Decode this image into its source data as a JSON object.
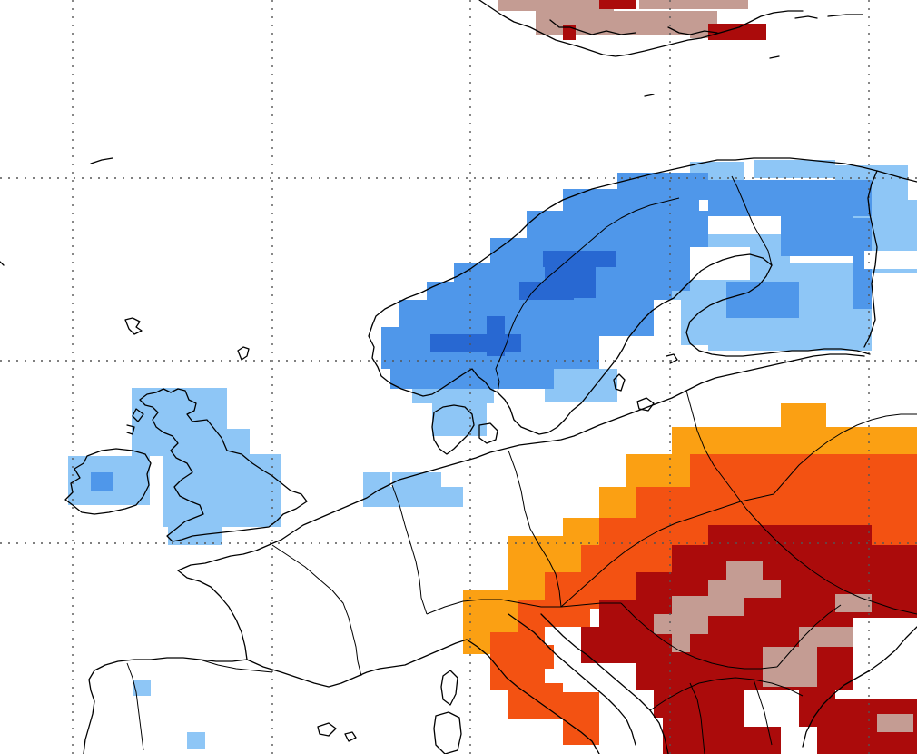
{
  "map": {
    "type": "gridded-anomaly-map",
    "region": "Europe",
    "gridlines": "dotted",
    "legend_visible": false,
    "text_labels_visible": false
  },
  "palette": {
    "cold_1": "#8ec6f6",
    "cold_2": "#4f97ea",
    "cold_3": "#2868d2",
    "warm_1": "#fba013",
    "warm_2": "#f35212",
    "warm_3": "#ab0b0b",
    "warm_3_extreme": "#c49c93",
    "coastline": "#000000",
    "gridline": "#555555"
  },
  "anomaly_areas": [
    {
      "id": "scandinavia",
      "sign": "cold",
      "levels_present": [
        "cold_1",
        "cold_2",
        "cold_3"
      ]
    },
    {
      "id": "british-isles",
      "sign": "cold",
      "levels_present": [
        "cold_1",
        "cold_2"
      ]
    },
    {
      "id": "low-countries",
      "sign": "cold",
      "levels_present": [
        "cold_1"
      ]
    },
    {
      "id": "central-eastern-europe",
      "sign": "warm",
      "levels_present": [
        "warm_1",
        "warm_2",
        "warm_3",
        "warm_3_extreme"
      ]
    },
    {
      "id": "greenland-iceland",
      "sign": "warm",
      "levels_present": [
        "warm_3",
        "warm_3_extreme"
      ]
    }
  ]
}
